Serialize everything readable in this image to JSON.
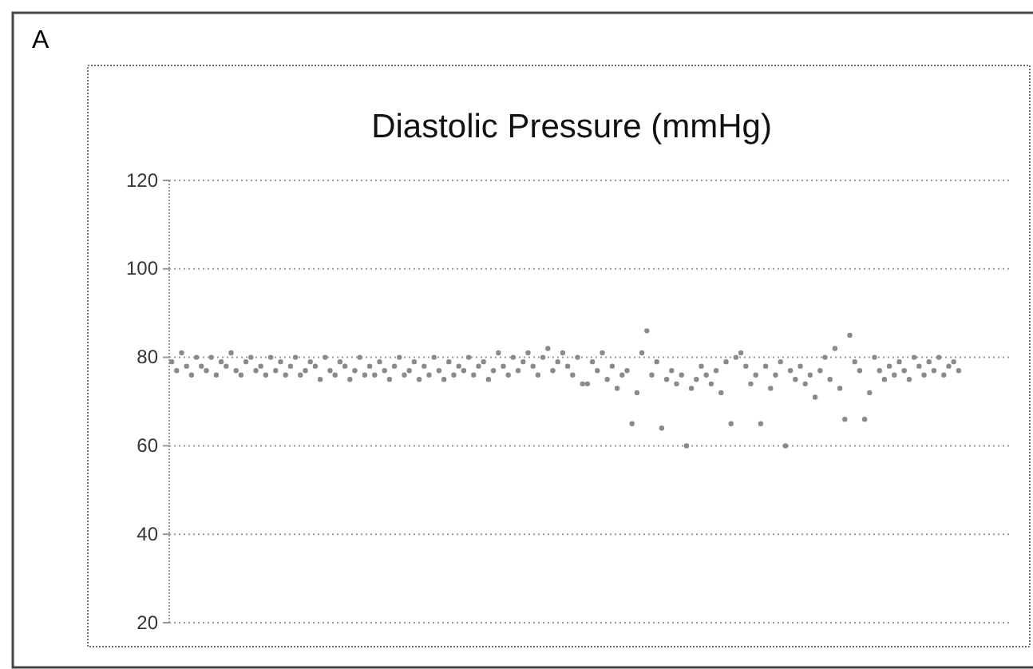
{
  "chart_data": {
    "type": "scatter",
    "title": "Diastolic Pressure (mmHg)",
    "annotations": [
      "A"
    ],
    "categories": [
      null,
      null,
      null,
      null,
      null,
      null,
      null,
      null,
      null,
      null,
      null,
      null,
      null,
      null,
      null,
      null,
      null,
      null,
      null,
      null,
      null,
      null,
      null,
      null,
      null,
      null,
      null,
      null,
      null,
      null,
      null,
      null,
      null,
      null,
      null,
      null,
      null,
      null,
      null,
      null,
      null,
      null,
      null,
      null,
      null,
      null,
      null,
      null,
      null,
      null,
      null,
      null,
      null,
      null,
      null,
      null,
      null,
      null,
      null,
      null,
      null,
      null,
      null,
      null,
      null,
      null,
      null,
      null,
      null,
      null,
      null,
      null,
      null,
      null,
      null,
      null,
      null,
      null,
      null,
      null,
      null,
      null,
      null,
      null,
      null,
      null,
      null,
      null,
      null,
      null,
      null,
      null,
      null,
      null,
      null,
      null,
      null,
      null,
      null,
      null,
      null,
      null,
      null,
      null,
      null,
      null,
      null,
      null,
      null,
      null,
      null,
      null,
      null,
      null,
      null,
      null,
      null,
      null,
      null,
      null,
      null,
      null,
      null,
      null,
      null,
      null,
      null,
      null,
      null,
      null,
      null,
      null,
      null,
      null,
      null,
      null,
      null,
      null,
      null,
      null,
      null,
      null,
      null,
      null,
      null,
      null,
      null,
      null,
      null,
      null,
      null,
      null,
      null,
      null,
      null,
      null,
      null,
      null,
      null,
      null,
      null,
      null,
      null,
      null,
      null,
      null,
      null,
      null,
      null,
      null
    ],
    "series": [
      {
        "color": "#8a8a8a",
        "values": [
          79,
          77,
          81,
          78,
          76,
          80,
          78,
          77,
          80,
          76,
          79,
          78,
          81,
          77,
          76,
          79,
          80,
          77,
          78,
          76,
          80,
          77,
          79,
          76,
          78,
          80,
          76,
          77,
          79,
          78,
          75,
          80,
          77,
          76,
          79,
          78,
          75,
          77,
          80,
          76,
          78,
          76,
          79,
          77,
          75,
          78,
          80,
          76,
          77,
          79,
          75,
          78,
          76,
          80,
          77,
          75,
          79,
          76,
          78,
          77,
          80,
          76,
          78,
          79,
          75,
          77,
          81,
          78,
          76,
          80,
          77,
          79,
          81,
          78,
          76,
          80,
          82,
          77,
          79,
          81,
          78,
          76,
          80,
          74,
          74,
          79,
          77,
          81,
          75,
          78,
          73,
          76,
          77,
          65,
          72,
          81,
          86,
          76,
          79,
          64,
          75,
          77,
          74,
          76,
          60,
          73,
          75,
          78,
          76,
          74,
          77,
          72,
          79,
          65,
          80,
          81,
          78,
          74,
          76,
          65,
          78,
          73,
          76,
          79,
          60,
          77,
          75,
          78,
          74,
          76,
          71,
          77,
          80,
          75,
          82,
          73,
          66,
          85,
          79,
          77,
          66,
          72,
          80,
          77,
          75,
          78,
          76,
          79,
          77,
          75,
          80,
          78,
          76,
          79,
          77,
          80,
          76,
          78,
          79,
          77,
          null,
          null,
          null,
          null,
          null,
          null,
          null,
          null,
          null,
          null
        ]
      }
    ],
    "ylim": [
      20,
      120
    ],
    "yticks": [
      20,
      40,
      60,
      80,
      100,
      120
    ],
    "grid": "y",
    "marker": "circle",
    "tick_labels": "y"
  }
}
